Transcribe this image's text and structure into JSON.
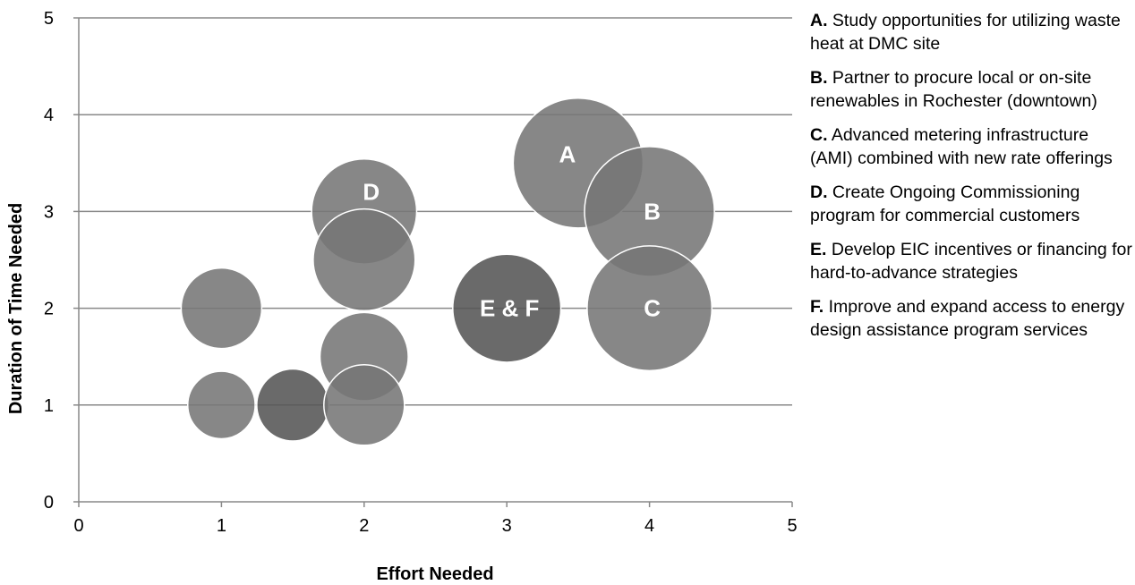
{
  "chart_data": {
    "type": "scatter",
    "subtype": "bubble",
    "xlabel": "Effort Needed",
    "ylabel": "Duration of Time Needed",
    "xlim": [
      0,
      5
    ],
    "ylim": [
      0,
      5
    ],
    "xticks": [
      0,
      1,
      2,
      3,
      4,
      5
    ],
    "yticks": [
      0,
      1,
      2,
      3,
      4,
      5
    ],
    "grid": "horizontal",
    "legend_position": "right",
    "colors": {
      "light": "#767676",
      "dark": "#555555",
      "outline": "#ffffff",
      "grid": "#888888"
    },
    "points": [
      {
        "x": 3.5,
        "y": 3.5,
        "size": 2.6,
        "label": "A",
        "shade": "light"
      },
      {
        "x": 4,
        "y": 3,
        "size": 2.6,
        "label": "B",
        "shade": "light"
      },
      {
        "x": 4,
        "y": 2,
        "size": 2.4,
        "label": "C",
        "shade": "light"
      },
      {
        "x": 2,
        "y": 3,
        "size": 1.7,
        "label": "D",
        "shade": "light"
      },
      {
        "x": 2,
        "y": 2.5,
        "size": 1.6,
        "label": "",
        "shade": "light"
      },
      {
        "x": 3,
        "y": 2,
        "size": 1.8,
        "label": "E & F",
        "shade": "dark"
      },
      {
        "x": 1,
        "y": 2,
        "size": 1.0,
        "label": "",
        "shade": "light"
      },
      {
        "x": 2,
        "y": 1.5,
        "size": 1.2,
        "label": "",
        "shade": "light"
      },
      {
        "x": 1,
        "y": 1,
        "size": 0.7,
        "label": "",
        "shade": "light"
      },
      {
        "x": 1.5,
        "y": 1,
        "size": 0.8,
        "label": "",
        "shade": "dark"
      },
      {
        "x": 2,
        "y": 1,
        "size": 1.0,
        "label": "",
        "shade": "light"
      }
    ]
  },
  "legend": {
    "items": [
      {
        "key": "A.",
        "text": "Study opportunities for utilizing waste heat at DMC site"
      },
      {
        "key": "B.",
        "text": "Partner to procure local or on-site renewables in Rochester (downtown)"
      },
      {
        "key": "C.",
        "text": "Advanced metering infrastructure (AMI) combined with new rate offerings"
      },
      {
        "key": "D.",
        "text": "Create Ongoing Commissioning program for commercial customers"
      },
      {
        "key": "E.",
        "text": "Develop EIC incentives or financing for hard-to-advance strategies"
      },
      {
        "key": "F.",
        "text": "Improve and expand access to energy design assistance program services"
      }
    ]
  }
}
